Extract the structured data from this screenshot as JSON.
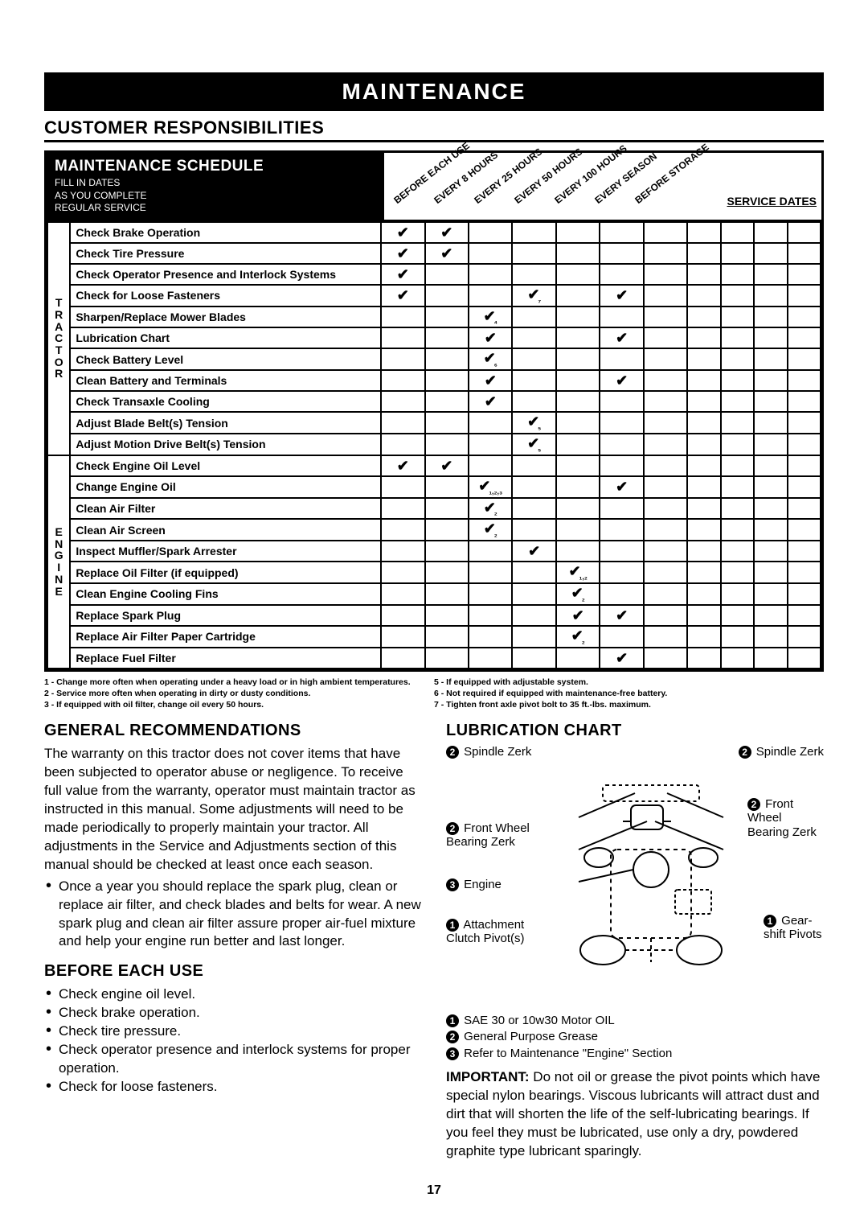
{
  "header": "MAINTENANCE",
  "customer_resp": "CUSTOMER RESPONSIBILITIES",
  "schedule": {
    "title": "MAINTENANCE SCHEDULE",
    "subtitle": "FILL IN DATES\nAS YOU COMPLETE\nREGULAR SERVICE",
    "diag_cols": [
      "BEFORE EACH USE",
      "EVERY 8 HOURS",
      "EVERY 25 HOURS",
      "EVERY 50 HOURS",
      "EVERY 100 HOURS",
      "EVERY SEASON",
      "BEFORE STORAGE"
    ],
    "service_dates": "SERVICE DATES",
    "groups": [
      {
        "label": "T\nR\nA\nC\nT\nO\nR",
        "rows": [
          {
            "task": "Check Brake Operation",
            "checks": [
              "✔",
              "✔",
              "",
              "",
              "",
              "",
              ""
            ]
          },
          {
            "task": "Check Tire Pressure",
            "checks": [
              "✔",
              "✔",
              "",
              "",
              "",
              "",
              ""
            ]
          },
          {
            "task": "Check Operator Presence and Interlock Systems",
            "checks": [
              "✔",
              "",
              "",
              "",
              "",
              "",
              ""
            ]
          },
          {
            "task": "Check for Loose Fasteners",
            "checks": [
              "✔",
              "",
              "",
              "✔₇",
              "",
              "✔",
              ""
            ]
          },
          {
            "task": "Sharpen/Replace Mower Blades",
            "checks": [
              "",
              "",
              "✔₄",
              "",
              "",
              "",
              ""
            ]
          },
          {
            "task": "Lubrication Chart",
            "checks": [
              "",
              "",
              "✔",
              "",
              "",
              "✔",
              ""
            ]
          },
          {
            "task": "Check Battery Level",
            "checks": [
              "",
              "",
              "✔₆",
              "",
              "",
              "",
              ""
            ]
          },
          {
            "task": "Clean Battery and Terminals",
            "checks": [
              "",
              "",
              "✔",
              "",
              "",
              "✔",
              ""
            ]
          },
          {
            "task": "Check Transaxle Cooling",
            "checks": [
              "",
              "",
              "✔",
              "",
              "",
              "",
              ""
            ]
          },
          {
            "task": "Adjust Blade Belt(s) Tension",
            "checks": [
              "",
              "",
              "",
              "✔₅",
              "",
              "",
              ""
            ]
          },
          {
            "task": "Adjust Motion Drive Belt(s) Tension",
            "checks": [
              "",
              "",
              "",
              "✔₅",
              "",
              "",
              ""
            ]
          }
        ]
      },
      {
        "label": "E\nN\nG\nI\nN\nE",
        "rows": [
          {
            "task": "Check Engine Oil Level",
            "checks": [
              "✔",
              "✔",
              "",
              "",
              "",
              "",
              ""
            ]
          },
          {
            "task": "Change Engine Oil",
            "checks": [
              "",
              "",
              "✔₁,₂,₃",
              "",
              "",
              "✔",
              ""
            ]
          },
          {
            "task": "Clean Air Filter",
            "checks": [
              "",
              "",
              "✔₂",
              "",
              "",
              "",
              ""
            ]
          },
          {
            "task": "Clean Air Screen",
            "checks": [
              "",
              "",
              "✔₂",
              "",
              "",
              "",
              ""
            ]
          },
          {
            "task": "Inspect Muffler/Spark Arrester",
            "checks": [
              "",
              "",
              "",
              "✔",
              "",
              "",
              ""
            ]
          },
          {
            "task": "Replace Oil Filter (if equipped)",
            "checks": [
              "",
              "",
              "",
              "",
              "✔₁,₂",
              "",
              ""
            ]
          },
          {
            "task": "Clean Engine Cooling Fins",
            "checks": [
              "",
              "",
              "",
              "",
              "✔₂",
              "",
              ""
            ]
          },
          {
            "task": "Replace Spark Plug",
            "checks": [
              "",
              "",
              "",
              "",
              "✔",
              "✔",
              ""
            ]
          },
          {
            "task": "Replace Air Filter Paper Cartridge",
            "checks": [
              "",
              "",
              "",
              "",
              "✔₂",
              "",
              ""
            ]
          },
          {
            "task": "Replace Fuel Filter",
            "checks": [
              "",
              "",
              "",
              "",
              "",
              "✔",
              ""
            ]
          }
        ]
      }
    ]
  },
  "footnotes_left": [
    "1 - Change more often when operating under a heavy load or in high ambient temperatures.",
    "2 - Service more often when operating in dirty or dusty conditions.",
    "3 - If equipped with oil filter, change oil every 50 hours."
  ],
  "footnotes_right": [
    "5 - If equipped with adjustable system.",
    "6 - Not required if equipped with maintenance-free battery.",
    "7 - Tighten front axle pivot bolt to 35 ft.-lbs. maximum."
  ],
  "gen_rec": {
    "title": "GENERAL RECOMMENDATIONS",
    "body": "The warranty on this tractor does not cover items that have been subjected to operator abuse or negligence. To receive full value from the warranty, operator must maintain tractor as instructed in this manual. Some adjustments will need to be made periodically to properly maintain your tractor. All adjustments in the Service and Adjustments section of this manual should be checked at least once each season.",
    "bullet": "Once a year you should replace the spark plug, clean or replace air filter, and check blades and belts for wear. A new spark plug and clean air filter assure proper air-fuel mixture and help your engine run better and last longer."
  },
  "before": {
    "title": "BEFORE EACH USE",
    "items": [
      "Check engine oil level.",
      "Check brake operation.",
      "Check tire pressure.",
      "Check operator presence and interlock systems for proper operation.",
      "Check for loose fasteners."
    ]
  },
  "lube": {
    "title": "LUBRICATION CHART",
    "labels": {
      "spindle_l": "Spindle Zerk",
      "spindle_r": "Spindle Zerk",
      "front_wheel_l": "Front Wheel Bearing Zerk",
      "front_wheel_r": "Front Wheel Bearing Zerk",
      "engine": "Engine",
      "clutch": "Attachment Clutch Pivot(s)",
      "gearshift": "Gear-shift Pivots"
    },
    "legend": [
      "SAE 30 or 10w30 Motor OIL",
      "General Purpose Grease",
      "Refer to Maintenance \"Engine\" Section"
    ],
    "important_label": "IMPORTANT:",
    "important": "Do not oil or grease the pivot points which have special nylon bearings. Viscous lubricants will attract dust and dirt that will shorten the life of the self-lubricating bearings. If you feel they must be lubricated, use only a dry, powdered graphite type lubricant sparingly."
  },
  "page_number": "17"
}
